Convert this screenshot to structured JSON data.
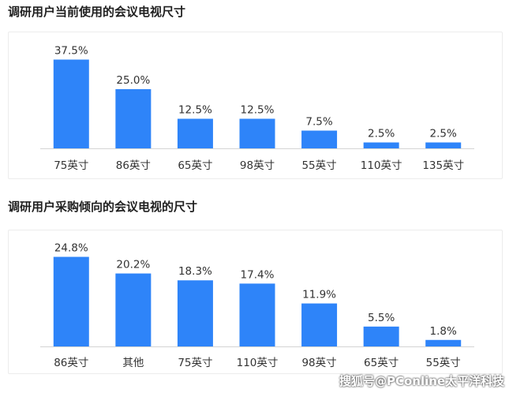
{
  "chart_data": [
    {
      "type": "bar",
      "title": "调研用户当前使用的会议电视尺寸",
      "categories": [
        "75英寸",
        "86英寸",
        "65英寸",
        "98英寸",
        "55英寸",
        "110英寸",
        "135英寸"
      ],
      "values": [
        37.5,
        25.0,
        12.5,
        12.5,
        7.5,
        2.5,
        2.5
      ],
      "value_labels": [
        "37.5%",
        "25.0%",
        "12.5%",
        "12.5%",
        "7.5%",
        "2.5%",
        "2.5%"
      ],
      "unit": "%",
      "ylim": [
        0,
        40
      ],
      "grid": false,
      "bar_color": "#2e84f9"
    },
    {
      "type": "bar",
      "title": "调研用户采购倾向的会议电视的尺寸",
      "categories": [
        "86英寸",
        "其他",
        "75英寸",
        "110英寸",
        "98英寸",
        "65英寸",
        "55英寸"
      ],
      "values": [
        24.8,
        20.2,
        18.3,
        17.4,
        11.9,
        5.5,
        1.8
      ],
      "value_labels": [
        "24.8%",
        "20.2%",
        "18.3%",
        "17.4%",
        "11.9%",
        "5.5%",
        "1.8%"
      ],
      "unit": "%",
      "ylim": [
        0,
        26
      ],
      "grid": false,
      "bar_color": "#2e84f9"
    }
  ],
  "watermark": "搜狐号@PConline太平洋科技"
}
